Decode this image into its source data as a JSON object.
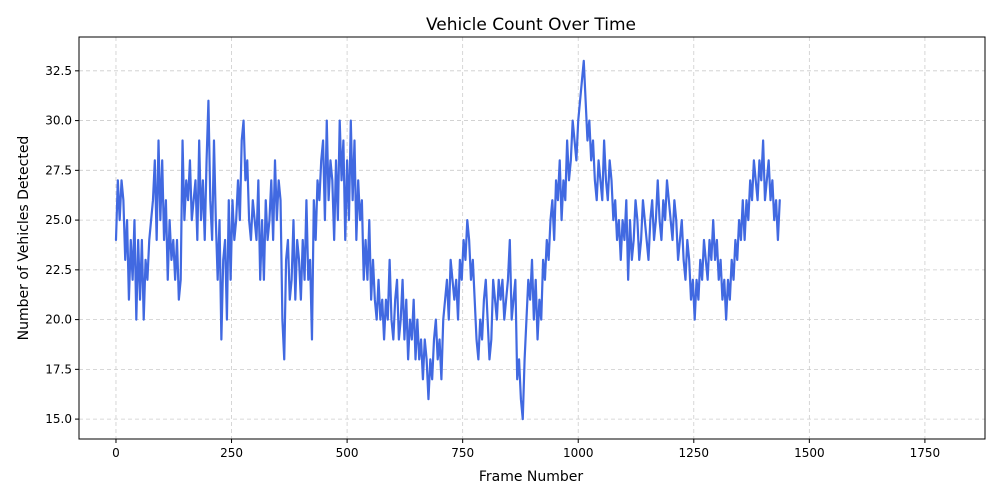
{
  "chart_data": {
    "type": "line",
    "title": "Vehicle Count Over Time",
    "xlabel": "Frame Number",
    "ylabel": "Number of Vehicles Detected",
    "xlim": [
      -80,
      1880
    ],
    "ylim": [
      14.0,
      34.2
    ],
    "xticks": [
      0,
      250,
      500,
      750,
      1000,
      1250,
      1500,
      1750
    ],
    "yticks": [
      15.0,
      17.5,
      20.0,
      22.5,
      25.0,
      27.5,
      30.0,
      32.5
    ],
    "xtick_labels": [
      "0",
      "250",
      "500",
      "750",
      "1000",
      "1250",
      "1500",
      "1750"
    ],
    "ytick_labels": [
      "15.0",
      "17.5",
      "20.0",
      "22.5",
      "25.0",
      "27.5",
      "30.0",
      "32.5"
    ],
    "grid": true,
    "series": [
      {
        "color": "#4169e1",
        "x_start": 0,
        "x_step": 4,
        "values": [
          24,
          27,
          25,
          27,
          26,
          23,
          25,
          21,
          24,
          22,
          25,
          20,
          24,
          21,
          24,
          20,
          23,
          22,
          24,
          25,
          26,
          28,
          24,
          29,
          25,
          28,
          24,
          26,
          22,
          25,
          23,
          24,
          22,
          24,
          21,
          22,
          29,
          25,
          27,
          26,
          28,
          25,
          26,
          27,
          24,
          29,
          25,
          27,
          24,
          28,
          31,
          26,
          24,
          29,
          25,
          22,
          25,
          19,
          23,
          24,
          20,
          26,
          22,
          26,
          24,
          25,
          27,
          25,
          29,
          30,
          27,
          28,
          25,
          24,
          26,
          25,
          24,
          27,
          22,
          25,
          22,
          26,
          24,
          25,
          27,
          24,
          28,
          25,
          27,
          26,
          20,
          18,
          23,
          24,
          21,
          22,
          25,
          21,
          24,
          23,
          21,
          24,
          22,
          26,
          22,
          23,
          19,
          26,
          24,
          27,
          26,
          28,
          29,
          25,
          30,
          26,
          28,
          27,
          24,
          28,
          25,
          30,
          27,
          29,
          24,
          28,
          25,
          30,
          26,
          29,
          24,
          27,
          25,
          26,
          22,
          24,
          22,
          25,
          21,
          23,
          21,
          20,
          22,
          20,
          21,
          19,
          21,
          20,
          23,
          20,
          19,
          21,
          22,
          19,
          20,
          22,
          19,
          21,
          18,
          20,
          19,
          21,
          18,
          20,
          18,
          19,
          17,
          19,
          18,
          16,
          18,
          17,
          19,
          20,
          18,
          19,
          17,
          20,
          21,
          22,
          20,
          23,
          22,
          21,
          22,
          20,
          23,
          22,
          24,
          23,
          25,
          24,
          22,
          23,
          21,
          19,
          18,
          20,
          19,
          21,
          22,
          20,
          18,
          19,
          22,
          21,
          20,
          22,
          21,
          22,
          20,
          21,
          22,
          24,
          20,
          21,
          22,
          17,
          18,
          16,
          15,
          18,
          20,
          22,
          21,
          23,
          20,
          22,
          19,
          21,
          20,
          23,
          22,
          24,
          23,
          25,
          26,
          24,
          27,
          26,
          28,
          25,
          27,
          26,
          29,
          27,
          28,
          30,
          29,
          28,
          30,
          31,
          32,
          33,
          31,
          29,
          30,
          28,
          29,
          27,
          26,
          28,
          27,
          26,
          29,
          27,
          26,
          28,
          27,
          25,
          26,
          24,
          25,
          23,
          25,
          24,
          26,
          22,
          25,
          23,
          24,
          26,
          25,
          23,
          24,
          26,
          25,
          24,
          23,
          25,
          26,
          24,
          25,
          27,
          25,
          24,
          26,
          25,
          27,
          26,
          25,
          24,
          26,
          25,
          23,
          24,
          25,
          23,
          22,
          24,
          23,
          21,
          22,
          20,
          22,
          21,
          23,
          22,
          24,
          23,
          22,
          24,
          23,
          25,
          23,
          24,
          22,
          23,
          21,
          22,
          20,
          22,
          21,
          23,
          22,
          24,
          23,
          25,
          24,
          26,
          24,
          26,
          25,
          27,
          26,
          28,
          27,
          26,
          28,
          27,
          29,
          26,
          27,
          28,
          26,
          27,
          25,
          26,
          24,
          26
        ]
      }
    ]
  }
}
